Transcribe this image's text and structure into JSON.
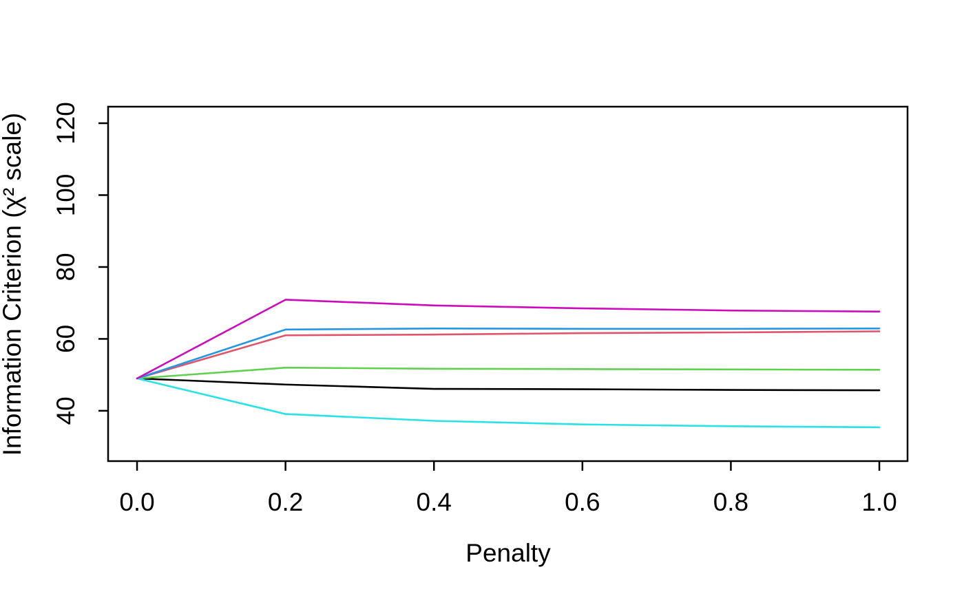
{
  "chart_data": {
    "type": "line",
    "title": "",
    "xlabel": "Penalty",
    "ylabel": "Information Criterion (χ² scale)",
    "x": [
      0.0,
      0.2,
      0.4,
      0.6,
      0.8,
      1.0
    ],
    "series": [
      {
        "name": "black",
        "color": "#000000",
        "values": [
          49.0,
          47.3,
          46.1,
          46.0,
          45.8,
          45.7
        ]
      },
      {
        "name": "red",
        "color": "#DF536B",
        "values": [
          49.0,
          61.0,
          61.2,
          61.6,
          61.8,
          62.1
        ]
      },
      {
        "name": "green",
        "color": "#61D04F",
        "values": [
          49.0,
          52.0,
          51.7,
          51.6,
          51.5,
          51.4
        ]
      },
      {
        "name": "blue",
        "color": "#2297E6",
        "values": [
          49.0,
          62.6,
          62.9,
          62.8,
          62.8,
          62.9
        ]
      },
      {
        "name": "cyan",
        "color": "#28E2E5",
        "values": [
          49.0,
          39.1,
          37.2,
          36.2,
          35.7,
          35.4
        ]
      },
      {
        "name": "magenta",
        "color": "#CD0BBC",
        "values": [
          49.0,
          70.9,
          69.3,
          68.5,
          67.9,
          67.6
        ]
      }
    ],
    "x_axis": {
      "ticks": [
        0.0,
        0.2,
        0.4,
        0.6,
        0.8,
        1.0
      ],
      "tick_labels": [
        "0.0",
        "0.2",
        "0.4",
        "0.6",
        "0.8",
        "1.0"
      ],
      "usr": [
        -0.039,
        1.038
      ]
    },
    "y_axis": {
      "ticks": [
        40,
        60,
        80,
        100,
        120
      ],
      "tick_labels": [
        "40",
        "60",
        "80",
        "100",
        "120"
      ],
      "usr": [
        26.0,
        124.6
      ]
    },
    "grid": false,
    "legend": "none",
    "line_width": 2.6,
    "axis_color": "#000000"
  }
}
